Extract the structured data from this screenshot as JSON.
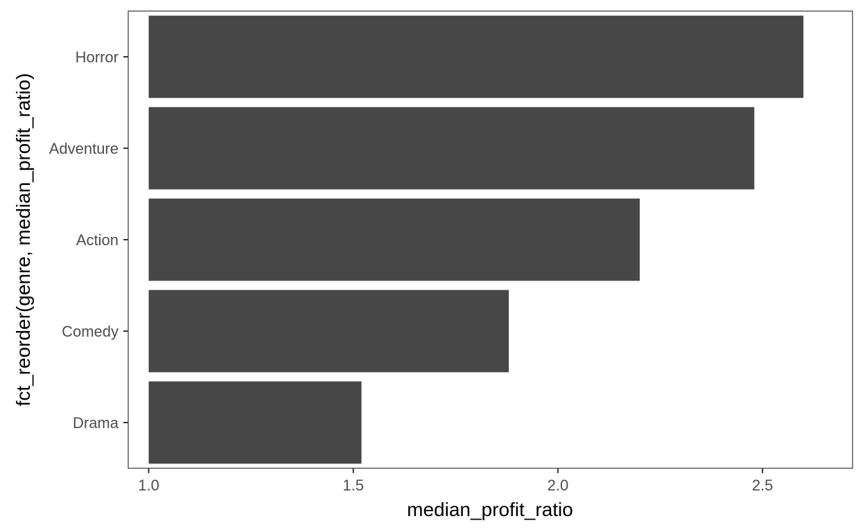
{
  "chart_data": {
    "type": "bar",
    "orientation": "horizontal",
    "categories": [
      "Horror",
      "Adventure",
      "Action",
      "Comedy",
      "Drama"
    ],
    "values": [
      2.6,
      2.48,
      2.2,
      1.88,
      1.52
    ],
    "xlabel": "median_profit_ratio",
    "ylabel": "fct_reorder(genre, median_profit_ratio)",
    "xticks": [
      "1.0",
      "1.5",
      "2.0",
      "2.5"
    ],
    "xtick_values": [
      1.0,
      1.5,
      2.0,
      2.5
    ],
    "xlim": [
      0.95,
      2.72
    ],
    "bar_base": 1.0,
    "grid": false,
    "legend": "none"
  },
  "colors": {
    "bar": "#474747",
    "panel_border": "#333333",
    "tick_text": "#4d4d4d",
    "axis_title": "#000000"
  }
}
